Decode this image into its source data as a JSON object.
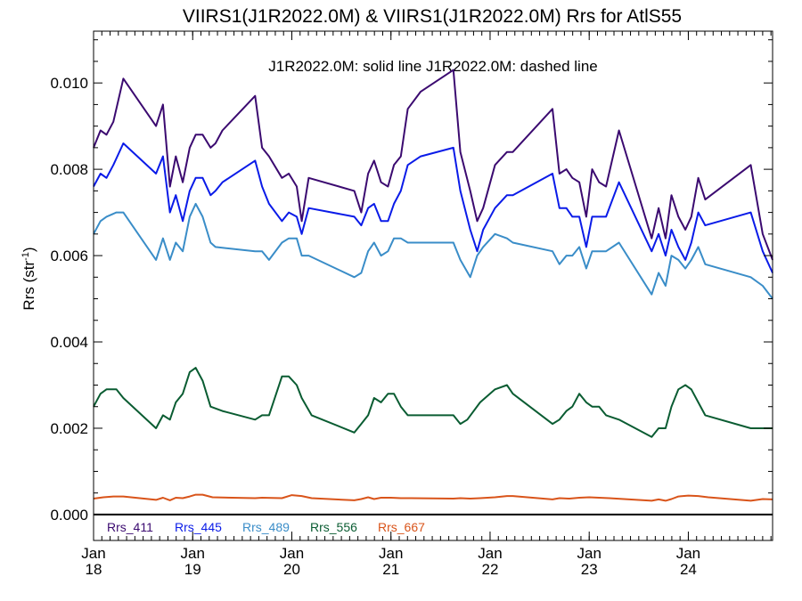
{
  "chart_data": {
    "type": "line",
    "title": "VIIRS1(J1R2022.0M) & VIIRS1(J1R2022.0M)  Rrs for AtlS55",
    "annotation": "J1R2022.0M: solid line   J1R2022.0M: dashed line",
    "xlabel": "",
    "ylabel": "Rrs (str",
    "ylabel_sup": "-1",
    "ylabel_close": ")",
    "xlim": [
      2018.0,
      2024.85
    ],
    "ylim": [
      -0.0006,
      0.0112
    ],
    "grid": false,
    "legend_position": "bottom-left inside",
    "x_ticks": [
      {
        "value": 2018,
        "line1": "Jan",
        "line2": "18"
      },
      {
        "value": 2019,
        "line1": "Jan",
        "line2": "19"
      },
      {
        "value": 2020,
        "line1": "Jan",
        "line2": "20"
      },
      {
        "value": 2021,
        "line1": "Jan",
        "line2": "21"
      },
      {
        "value": 2022,
        "line1": "Jan",
        "line2": "22"
      },
      {
        "value": 2023,
        "line1": "Jan",
        "line2": "23"
      },
      {
        "value": 2024,
        "line1": "Jan",
        "line2": "24"
      }
    ],
    "y_ticks": [
      {
        "value": 0.0,
        "label": "0.000"
      },
      {
        "value": 0.002,
        "label": "0.002"
      },
      {
        "value": 0.004,
        "label": "0.004"
      },
      {
        "value": 0.006,
        "label": "0.006"
      },
      {
        "value": 0.008,
        "label": "0.008"
      },
      {
        "value": 0.01,
        "label": "0.010"
      }
    ],
    "zero_line": 0.0,
    "series": [
      {
        "name": "Rrs_411",
        "color": "#3b0a70",
        "x": [
          2018.0,
          2018.07,
          2018.13,
          2018.2,
          2018.3,
          2018.63,
          2018.7,
          2018.77,
          2018.83,
          2018.9,
          2018.97,
          2019.03,
          2019.1,
          2019.18,
          2019.23,
          2019.3,
          2019.63,
          2019.7,
          2019.77,
          2019.9,
          2019.97,
          2020.05,
          2020.1,
          2020.17,
          2020.63,
          2020.7,
          2020.77,
          2020.83,
          2020.9,
          2020.97,
          2021.03,
          2021.1,
          2021.17,
          2021.3,
          2021.63,
          2021.7,
          2021.8,
          2021.87,
          2021.93,
          2022.05,
          2022.17,
          2022.23,
          2022.63,
          2022.7,
          2022.77,
          2022.83,
          2022.9,
          2022.97,
          2023.03,
          2023.1,
          2023.17,
          2023.3,
          2023.63,
          2023.7,
          2023.77,
          2023.83,
          2023.9,
          2023.97,
          2024.03,
          2024.1,
          2024.17,
          2024.63,
          2024.75,
          2024.85
        ],
        "values": [
          0.0085,
          0.0089,
          0.0088,
          0.0091,
          0.0101,
          0.009,
          0.0095,
          0.0076,
          0.0083,
          0.0077,
          0.0085,
          0.0088,
          0.0088,
          0.0085,
          0.0086,
          0.0089,
          0.0097,
          0.0085,
          0.0083,
          0.0078,
          0.0079,
          0.0076,
          0.0068,
          0.0078,
          0.0075,
          0.007,
          0.0079,
          0.0082,
          0.0077,
          0.0076,
          0.0081,
          0.0083,
          0.0094,
          0.0098,
          0.0103,
          0.0084,
          0.0075,
          0.0068,
          0.0071,
          0.0081,
          0.0084,
          0.0084,
          0.0094,
          0.0079,
          0.008,
          0.0078,
          0.0077,
          0.0069,
          0.008,
          0.0077,
          0.0076,
          0.0089,
          0.0064,
          0.0071,
          0.0064,
          0.0074,
          0.0069,
          0.0066,
          0.0069,
          0.0078,
          0.0073,
          0.0081,
          0.0065,
          0.0059
        ]
      },
      {
        "name": "Rrs_445",
        "color": "#0a1be8",
        "x": [
          2018.0,
          2018.07,
          2018.13,
          2018.2,
          2018.3,
          2018.63,
          2018.7,
          2018.77,
          2018.83,
          2018.9,
          2018.97,
          2019.03,
          2019.1,
          2019.18,
          2019.23,
          2019.3,
          2019.63,
          2019.7,
          2019.77,
          2019.9,
          2019.97,
          2020.05,
          2020.1,
          2020.17,
          2020.63,
          2020.7,
          2020.77,
          2020.83,
          2020.9,
          2020.97,
          2021.03,
          2021.1,
          2021.17,
          2021.3,
          2021.63,
          2021.7,
          2021.8,
          2021.87,
          2021.93,
          2022.05,
          2022.17,
          2022.23,
          2022.63,
          2022.7,
          2022.77,
          2022.83,
          2022.9,
          2022.97,
          2023.03,
          2023.1,
          2023.17,
          2023.3,
          2023.63,
          2023.7,
          2023.77,
          2023.83,
          2023.9,
          2023.97,
          2024.03,
          2024.1,
          2024.17,
          2024.63,
          2024.75,
          2024.85
        ],
        "values": [
          0.0076,
          0.0079,
          0.0078,
          0.0081,
          0.0086,
          0.0079,
          0.0083,
          0.007,
          0.0074,
          0.0068,
          0.0075,
          0.0078,
          0.0078,
          0.0074,
          0.0075,
          0.0077,
          0.0082,
          0.0076,
          0.0072,
          0.0068,
          0.007,
          0.0069,
          0.0065,
          0.0071,
          0.0069,
          0.0067,
          0.0071,
          0.0072,
          0.0068,
          0.0068,
          0.0072,
          0.0075,
          0.0081,
          0.0083,
          0.0085,
          0.0075,
          0.0066,
          0.0061,
          0.0066,
          0.0071,
          0.0074,
          0.0074,
          0.0079,
          0.0071,
          0.0071,
          0.0069,
          0.0069,
          0.0062,
          0.0069,
          0.0069,
          0.0069,
          0.0077,
          0.0061,
          0.0065,
          0.006,
          0.0066,
          0.0062,
          0.0059,
          0.0063,
          0.007,
          0.0067,
          0.007,
          0.0061,
          0.0056
        ]
      },
      {
        "name": "Rrs_489",
        "color": "#3a8dc8",
        "x": [
          2018.0,
          2018.07,
          2018.13,
          2018.23,
          2018.3,
          2018.63,
          2018.7,
          2018.77,
          2018.83,
          2018.9,
          2018.97,
          2019.03,
          2019.1,
          2019.18,
          2019.23,
          2019.63,
          2019.7,
          2019.77,
          2019.9,
          2019.97,
          2020.05,
          2020.1,
          2020.17,
          2020.63,
          2020.7,
          2020.77,
          2020.83,
          2020.9,
          2020.97,
          2021.03,
          2021.1,
          2021.17,
          2021.3,
          2021.63,
          2021.7,
          2021.8,
          2021.87,
          2021.93,
          2022.05,
          2022.17,
          2022.23,
          2022.63,
          2022.7,
          2022.77,
          2022.83,
          2022.9,
          2022.97,
          2023.03,
          2023.1,
          2023.17,
          2023.3,
          2023.63,
          2023.7,
          2023.77,
          2023.83,
          2023.9,
          2023.97,
          2024.03,
          2024.1,
          2024.17,
          2024.63,
          2024.75,
          2024.85
        ],
        "values": [
          0.0065,
          0.0068,
          0.0069,
          0.007,
          0.007,
          0.0059,
          0.0064,
          0.0059,
          0.0063,
          0.0061,
          0.0069,
          0.0072,
          0.0069,
          0.0063,
          0.0062,
          0.0061,
          0.0061,
          0.0059,
          0.0063,
          0.0064,
          0.0064,
          0.006,
          0.006,
          0.0055,
          0.0056,
          0.0061,
          0.0063,
          0.006,
          0.0061,
          0.0064,
          0.0064,
          0.0063,
          0.0063,
          0.0063,
          0.0059,
          0.0055,
          0.006,
          0.0062,
          0.0065,
          0.0064,
          0.0063,
          0.0061,
          0.0058,
          0.006,
          0.006,
          0.0062,
          0.0057,
          0.0061,
          0.0061,
          0.0061,
          0.0063,
          0.0051,
          0.0056,
          0.0053,
          0.006,
          0.0059,
          0.0057,
          0.0059,
          0.0062,
          0.0058,
          0.0055,
          0.0053,
          0.005
        ]
      },
      {
        "name": "Rrs_556",
        "color": "#0a5c32",
        "x": [
          2018.0,
          2018.07,
          2018.13,
          2018.23,
          2018.3,
          2018.63,
          2018.7,
          2018.77,
          2018.83,
          2018.9,
          2018.97,
          2019.03,
          2019.1,
          2019.18,
          2019.3,
          2019.63,
          2019.7,
          2019.77,
          2019.9,
          2019.97,
          2020.05,
          2020.1,
          2020.2,
          2020.63,
          2020.7,
          2020.77,
          2020.83,
          2020.9,
          2020.97,
          2021.03,
          2021.1,
          2021.17,
          2021.3,
          2021.63,
          2021.7,
          2021.77,
          2021.9,
          2022.05,
          2022.17,
          2022.23,
          2022.63,
          2022.7,
          2022.77,
          2022.83,
          2022.9,
          2022.97,
          2023.03,
          2023.1,
          2023.17,
          2023.3,
          2023.63,
          2023.7,
          2023.77,
          2023.83,
          2023.9,
          2023.97,
          2024.03,
          2024.1,
          2024.17,
          2024.63,
          2024.75,
          2024.85
        ],
        "values": [
          0.0025,
          0.0028,
          0.0029,
          0.0029,
          0.0027,
          0.002,
          0.0023,
          0.0022,
          0.0026,
          0.0028,
          0.0033,
          0.0034,
          0.0031,
          0.0025,
          0.0024,
          0.0022,
          0.0023,
          0.0023,
          0.0032,
          0.0032,
          0.003,
          0.0027,
          0.0023,
          0.0019,
          0.0021,
          0.0023,
          0.0027,
          0.0026,
          0.0028,
          0.0028,
          0.0025,
          0.0023,
          0.0023,
          0.0023,
          0.0021,
          0.0022,
          0.0026,
          0.0029,
          0.003,
          0.0028,
          0.0021,
          0.0022,
          0.0024,
          0.0025,
          0.0028,
          0.0026,
          0.0025,
          0.0025,
          0.0023,
          0.0022,
          0.0018,
          0.002,
          0.002,
          0.0025,
          0.0029,
          0.003,
          0.0029,
          0.0026,
          0.0023,
          0.002,
          0.002,
          0.002
        ]
      },
      {
        "name": "Rrs_667",
        "color": "#d9541a",
        "x": [
          2018.0,
          2018.1,
          2018.2,
          2018.3,
          2018.63,
          2018.7,
          2018.77,
          2018.83,
          2018.9,
          2018.97,
          2019.03,
          2019.1,
          2019.2,
          2019.63,
          2019.7,
          2019.9,
          2020.0,
          2020.1,
          2020.2,
          2020.63,
          2020.7,
          2020.77,
          2020.83,
          2020.9,
          2021.0,
          2021.1,
          2021.2,
          2021.63,
          2021.7,
          2021.8,
          2021.9,
          2022.05,
          2022.17,
          2022.23,
          2022.63,
          2022.7,
          2022.8,
          2022.9,
          2023.0,
          2023.1,
          2023.2,
          2023.63,
          2023.7,
          2023.77,
          2023.83,
          2023.9,
          2024.0,
          2024.1,
          2024.2,
          2024.63,
          2024.75,
          2024.85
        ],
        "values": [
          0.00037,
          0.0004,
          0.00042,
          0.00042,
          0.00034,
          0.00039,
          0.00033,
          0.00039,
          0.00038,
          0.00042,
          0.00046,
          0.00046,
          0.0004,
          0.00038,
          0.00039,
          0.00038,
          0.00045,
          0.00043,
          0.00038,
          0.00033,
          0.00036,
          0.0004,
          0.00036,
          0.00039,
          0.00039,
          0.00038,
          0.00038,
          0.00037,
          0.00038,
          0.00037,
          0.00038,
          0.0004,
          0.00043,
          0.00043,
          0.00035,
          0.00038,
          0.00037,
          0.00039,
          0.0004,
          0.00039,
          0.00038,
          0.00032,
          0.00035,
          0.00032,
          0.00036,
          0.00042,
          0.00044,
          0.00043,
          0.0004,
          0.00032,
          0.00036,
          0.00035
        ]
      }
    ]
  }
}
